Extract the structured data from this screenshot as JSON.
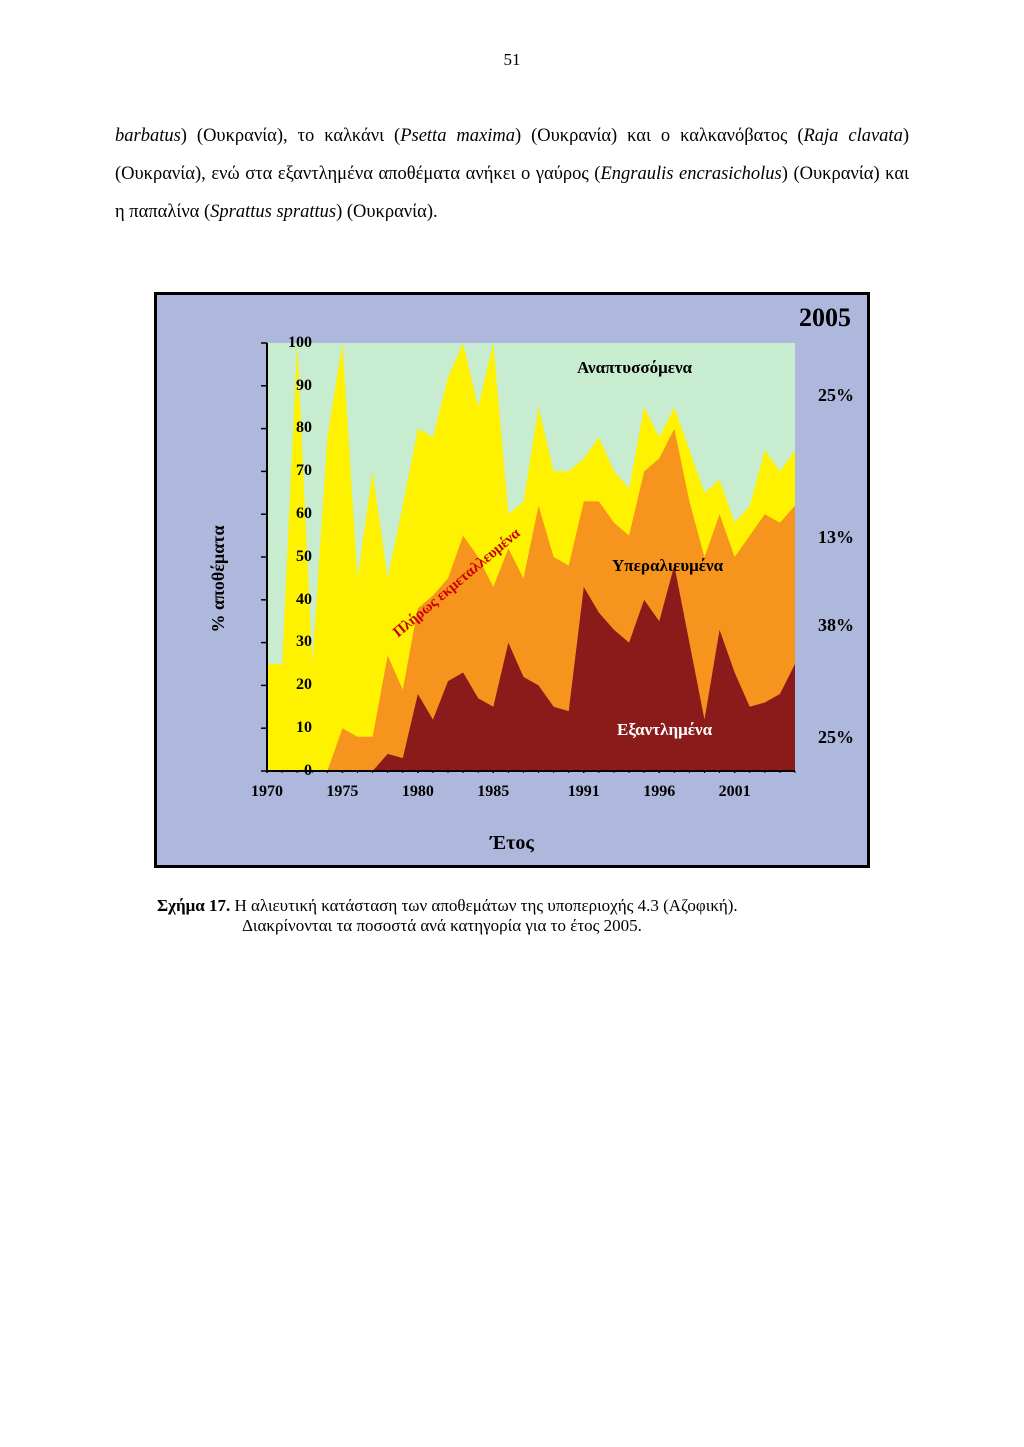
{
  "page_number": "51",
  "body_paragraph": {
    "seg1_i": "barbatus",
    "seg1": ") (Ουκρανία), το καλκάνι (",
    "seg2_i": "Psetta maxima",
    "seg2": ") (Ουκρανία) και ο καλκανόβατος (",
    "seg3_i": "Raja clavata",
    "seg3": ") (Ουκρανία), ενώ στα εξαντλημένα αποθέματα ανήκει ο γαύρος (",
    "seg4_i": "Engraulis encrasicholus",
    "seg4": ") (Ουκρανία) και η παπαλίνα (",
    "seg5_i": "Sprattus sprattus",
    "seg5": ") (Ουκρανία)."
  },
  "chart": {
    "type": "stacked-area",
    "background_color": "#aeb8dc",
    "plot_background_color": "#c7ecd0",
    "border_color": "#000000",
    "yellow": "#fff200",
    "orange": "#f7941d",
    "darkred": "#8b1a1a",
    "axis_color": "#000000",
    "ylabel": "% αποθέματα",
    "xlabel": "Έτος",
    "year_badge": "2005",
    "ylim": [
      0,
      100
    ],
    "xlim": [
      1970,
      2005
    ],
    "ytick_step": 10,
    "yticks": [
      0,
      10,
      20,
      30,
      40,
      50,
      60,
      70,
      80,
      90,
      100
    ],
    "xticks": [
      "1970",
      "1975",
      "1980",
      "1985",
      "1991",
      "1996",
      "2001"
    ],
    "xtick_years": [
      1970,
      1975,
      1980,
      1985,
      1991,
      1996,
      2001
    ],
    "labels": {
      "developing": "Αναπτυσσόμενα",
      "fully_exploited": "Πλήρως εκμεταλλευμένα",
      "overfished": "Υπεραλιευμένα",
      "depleted": "Εξαντλημένα"
    },
    "pct_2005": {
      "developing": "25%",
      "fully": "13%",
      "overfished": "38%",
      "depleted": "25%"
    },
    "years": [
      1970,
      1971,
      1972,
      1973,
      1974,
      1975,
      1976,
      1977,
      1978,
      1979,
      1980,
      1981,
      1982,
      1983,
      1984,
      1985,
      1986,
      1987,
      1988,
      1989,
      1990,
      1991,
      1992,
      1993,
      1994,
      1995,
      1996,
      1997,
      1998,
      1999,
      2000,
      2001,
      2002,
      2003,
      2004,
      2005
    ],
    "depleted": [
      0,
      0,
      0,
      0,
      0,
      0,
      0,
      0,
      4,
      3,
      18,
      12,
      21,
      23,
      17,
      15,
      30,
      22,
      20,
      15,
      14,
      43,
      37,
      33,
      30,
      40,
      35,
      48,
      30,
      12,
      33,
      23,
      15,
      16,
      18,
      25
    ],
    "overfished_top": [
      0,
      0,
      0,
      0,
      0,
      10,
      8,
      8,
      27,
      19,
      38,
      41,
      45,
      55,
      50,
      43,
      52,
      45,
      62,
      50,
      48,
      63,
      63,
      58,
      55,
      70,
      73,
      80,
      63,
      50,
      60,
      50,
      55,
      60,
      58,
      62
    ],
    "fully_top": [
      25,
      25,
      100,
      25,
      78,
      100,
      45,
      70,
      45,
      62,
      80,
      78,
      92,
      100,
      85,
      100,
      60,
      63,
      85,
      70,
      70,
      73,
      78,
      70,
      66,
      85,
      78,
      85,
      75,
      65,
      68,
      58,
      62,
      75,
      70,
      75
    ],
    "axis_lw": 2,
    "label_fontsize": 17,
    "tick_fontsize": 16
  },
  "caption": {
    "bold": "Σχήμα 17.",
    "line1": " Η αλιευτική κατάσταση των αποθεμάτων της υποπεριοχής 4.3 (Αζοφική).",
    "line2": "Διακρίνονται τα ποσοστά ανά κατηγορία για το έτος 2005."
  }
}
